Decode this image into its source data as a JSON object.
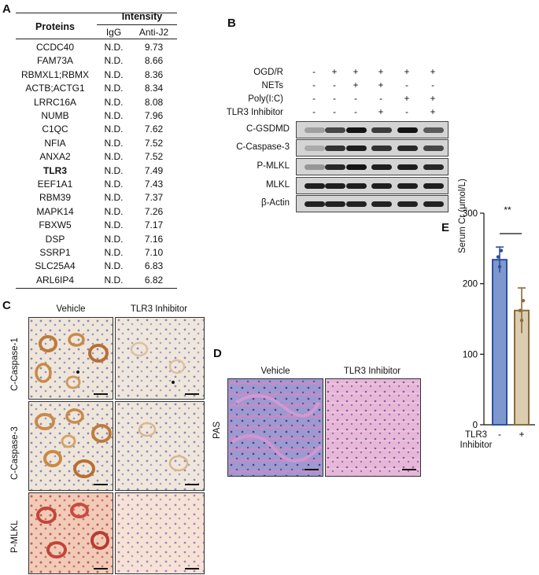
{
  "panel_a": {
    "letter": "A",
    "header_proteins": "Proteins",
    "header_intensity": "Intensity",
    "header_igg": "IgG",
    "header_antij2": "Anti-J2",
    "rows": [
      {
        "protein": "CCDC40",
        "igg": "N.D.",
        "antij2": "9.73"
      },
      {
        "protein": "FAM73A",
        "igg": "N.D.",
        "antij2": "8.66"
      },
      {
        "protein": "RBMXL1;RBMX",
        "igg": "N.D.",
        "antij2": "8.36"
      },
      {
        "protein": "ACTB;ACTG1",
        "igg": "N.D.",
        "antij2": "8.34"
      },
      {
        "protein": "LRRC16A",
        "igg": "N.D.",
        "antij2": "8.08"
      },
      {
        "protein": "NUMB",
        "igg": "N.D.",
        "antij2": "7.96"
      },
      {
        "protein": "C1QC",
        "igg": "N.D.",
        "antij2": "7.62"
      },
      {
        "protein": "NFIA",
        "igg": "N.D.",
        "antij2": "7.52"
      },
      {
        "protein": "ANXA2",
        "igg": "N.D.",
        "antij2": "7.52"
      },
      {
        "protein": "TLR3",
        "igg": "N.D.",
        "antij2": "7.49",
        "bold": true
      },
      {
        "protein": "EEF1A1",
        "igg": "N.D.",
        "antij2": "7.43"
      },
      {
        "protein": "RBM39",
        "igg": "N.D.",
        "antij2": "7.37"
      },
      {
        "protein": "MAPK14",
        "igg": "N.D.",
        "antij2": "7.26"
      },
      {
        "protein": "FBXW5",
        "igg": "N.D.",
        "antij2": "7.17"
      },
      {
        "protein": "DSP",
        "igg": "N.D.",
        "antij2": "7.16"
      },
      {
        "protein": "SSRP1",
        "igg": "N.D.",
        "antij2": "7.10"
      },
      {
        "protein": "SLC25A4",
        "igg": "N.D.",
        "antij2": "6.83"
      },
      {
        "protein": "ARL6IP4",
        "igg": "N.D.",
        "antij2": "6.82"
      }
    ]
  },
  "panel_b": {
    "letter": "B",
    "conditions": [
      {
        "label": "OGD/R",
        "signs": [
          "-",
          "+",
          "+",
          "+",
          "+",
          "+"
        ]
      },
      {
        "label": "NETs",
        "signs": [
          "-",
          "-",
          "+",
          "+",
          "-",
          "-"
        ]
      },
      {
        "label": "Poly(I:C)",
        "signs": [
          "-",
          "-",
          "-",
          "-",
          "+",
          "+"
        ]
      },
      {
        "label": "TLR3 Inhibitor",
        "signs": [
          "-",
          "-",
          "-",
          "+",
          "-",
          "+"
        ]
      }
    ],
    "blots": [
      {
        "label": "C-GSDMD",
        "intensity": [
          0.25,
          0.7,
          0.95,
          0.75,
          0.95,
          0.6
        ]
      },
      {
        "label": "C-Caspase-3",
        "intensity": [
          0.2,
          0.8,
          0.9,
          0.8,
          0.85,
          0.7
        ]
      },
      {
        "label": "P-MLKL",
        "intensity": [
          0.3,
          0.85,
          0.95,
          0.9,
          0.9,
          0.85
        ]
      },
      {
        "label": "MLKL",
        "intensity": [
          0.9,
          0.9,
          0.9,
          0.9,
          0.9,
          0.9
        ]
      },
      {
        "label": "β-Actin",
        "intensity": [
          0.88,
          0.88,
          0.88,
          0.88,
          0.88,
          0.88
        ]
      }
    ]
  },
  "panel_c": {
    "letter": "C",
    "col_vehicle": "Vehicle",
    "col_inhibitor": "TLR3 Inhibitor",
    "row_labels": [
      "C-Caspase-1",
      "C-Caspase-3",
      "P-MLKL"
    ]
  },
  "panel_d": {
    "letter": "D",
    "col_vehicle": "Vehicle",
    "col_inhibitor": "TLR3 Inhibitor",
    "row_label": "PAS"
  },
  "panel_e": {
    "letter": "E",
    "significance": "**",
    "x_label_line1": "TLR3",
    "x_label_line2": "Inhibitor",
    "chart_data": {
      "type": "bar",
      "categories": [
        "-",
        "+"
      ],
      "values": [
        234,
        162
      ],
      "errors": [
        18,
        32
      ],
      "points": [
        [
          238,
          224,
          247
        ],
        [
          162,
          148,
          176
        ]
      ],
      "ylabel": "Serum Cr (μmol/L)",
      "ylim": [
        0,
        300
      ],
      "yticks": [
        "0",
        "100",
        "200",
        "300"
      ],
      "colors": [
        "#7f97cf",
        "#dcccb0"
      ],
      "edge_colors": [
        "#2d4f9a",
        "#8a6c3a"
      ]
    }
  }
}
